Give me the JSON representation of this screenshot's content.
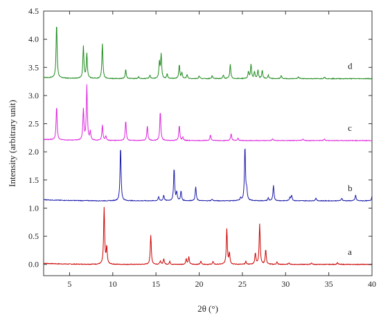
{
  "chart_data": {
    "type": "line",
    "xlabel": "2θ (°)",
    "ylabel": "Intensity (arbitrary unit)",
    "xlim": [
      2,
      40
    ],
    "ylim": [
      -0.2,
      4.5
    ],
    "xticks": [
      5,
      10,
      15,
      20,
      25,
      30,
      35,
      40
    ],
    "yticks": [
      0.0,
      0.5,
      1.0,
      1.5,
      2.0,
      2.5,
      3.0,
      3.5,
      4.0,
      4.5
    ],
    "ytick_labels": [
      "0.0",
      "0.5",
      "1.0",
      "1.5",
      "2.0",
      "2.5",
      "3.0",
      "3.5",
      "4.0",
      "4.5"
    ],
    "grid": false,
    "series": [
      {
        "label": "a",
        "color": "#cc0000",
        "baseline": 0.0,
        "peaks": [
          [
            9.0,
            1.0
          ],
          [
            9.3,
            0.3
          ],
          [
            14.4,
            0.52
          ],
          [
            15.5,
            0.06
          ],
          [
            15.9,
            0.1
          ],
          [
            16.6,
            0.05
          ],
          [
            18.5,
            0.1
          ],
          [
            18.8,
            0.13
          ],
          [
            20.2,
            0.06
          ],
          [
            21.6,
            0.05
          ],
          [
            23.2,
            0.63
          ],
          [
            23.5,
            0.2
          ],
          [
            25.4,
            0.05
          ],
          [
            26.5,
            0.2
          ],
          [
            27.0,
            0.72
          ],
          [
            27.7,
            0.26
          ],
          [
            29.0,
            0.04
          ],
          [
            30.4,
            0.03
          ],
          [
            33.0,
            0.03
          ],
          [
            36.0,
            0.03
          ]
        ]
      },
      {
        "label": "b",
        "color": "#1a1aaa",
        "baseline": 1.13,
        "peaks": [
          [
            10.9,
            0.97
          ],
          [
            15.3,
            0.07
          ],
          [
            15.9,
            0.1
          ],
          [
            17.1,
            0.58
          ],
          [
            17.4,
            0.15
          ],
          [
            17.9,
            0.17
          ],
          [
            19.6,
            0.25
          ],
          [
            21.5,
            0.03
          ],
          [
            24.8,
            0.05
          ],
          [
            25.3,
            0.97
          ],
          [
            25.5,
            0.18
          ],
          [
            28.0,
            0.05
          ],
          [
            28.6,
            0.27
          ],
          [
            30.5,
            0.06
          ],
          [
            30.7,
            0.1
          ],
          [
            33.5,
            0.05
          ],
          [
            36.5,
            0.05
          ],
          [
            38.1,
            0.1
          ],
          [
            40.0,
            0.08
          ]
        ]
      },
      {
        "label": "c",
        "color": "#dd22dd",
        "baseline": 2.2,
        "peaks": [
          [
            3.5,
            0.6
          ],
          [
            6.6,
            0.55
          ],
          [
            7.0,
            0.97
          ],
          [
            7.4,
            0.15
          ],
          [
            8.8,
            0.27
          ],
          [
            9.2,
            0.08
          ],
          [
            11.5,
            0.35
          ],
          [
            14.0,
            0.26
          ],
          [
            15.5,
            0.52
          ],
          [
            17.7,
            0.27
          ],
          [
            18.1,
            0.06
          ],
          [
            21.3,
            0.1
          ],
          [
            23.7,
            0.12
          ],
          [
            24.5,
            0.04
          ],
          [
            28.5,
            0.03
          ],
          [
            32.0,
            0.03
          ],
          [
            34.5,
            0.03
          ]
        ]
      },
      {
        "label": "d",
        "color": "#1d8a1d",
        "baseline": 3.3,
        "peaks": [
          [
            3.5,
            0.97
          ],
          [
            6.6,
            0.57
          ],
          [
            7.0,
            0.44
          ],
          [
            8.8,
            0.62
          ],
          [
            11.5,
            0.16
          ],
          [
            13.0,
            0.03
          ],
          [
            14.3,
            0.06
          ],
          [
            15.4,
            0.28
          ],
          [
            15.6,
            0.42
          ],
          [
            16.3,
            0.08
          ],
          [
            17.7,
            0.25
          ],
          [
            18.0,
            0.1
          ],
          [
            18.6,
            0.07
          ],
          [
            20.0,
            0.05
          ],
          [
            21.5,
            0.05
          ],
          [
            22.8,
            0.06
          ],
          [
            23.6,
            0.25
          ],
          [
            25.7,
            0.12
          ],
          [
            26.0,
            0.25
          ],
          [
            26.4,
            0.12
          ],
          [
            26.8,
            0.15
          ],
          [
            27.3,
            0.15
          ],
          [
            28.0,
            0.06
          ],
          [
            29.5,
            0.05
          ],
          [
            31.5,
            0.03
          ],
          [
            34.5,
            0.03
          ]
        ]
      }
    ]
  }
}
